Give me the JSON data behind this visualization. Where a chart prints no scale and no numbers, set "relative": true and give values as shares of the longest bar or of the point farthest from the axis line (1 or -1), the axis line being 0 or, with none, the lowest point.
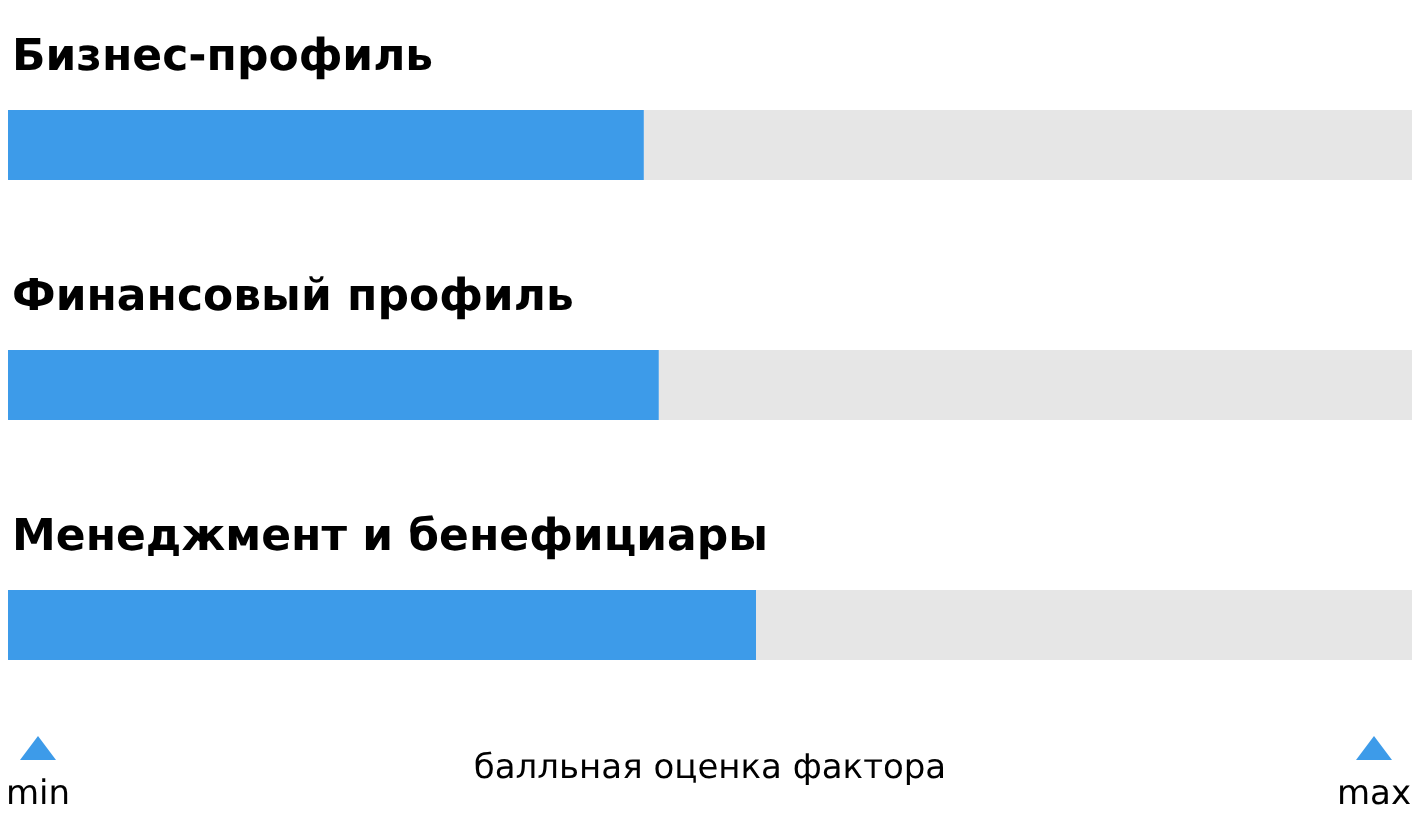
{
  "chart_data": {
    "type": "bar",
    "orientation": "horizontal",
    "relative": true,
    "categories": [
      "Бизнес-профиль",
      "Финансовый профиль",
      "Менеджмент и бенефициары"
    ],
    "values": [
      0.85,
      0.87,
      1
    ],
    "color": "#3d9be9",
    "xlabel": "балльная оценка фактора",
    "annotations": [
      "min",
      "max"
    ]
  }
}
